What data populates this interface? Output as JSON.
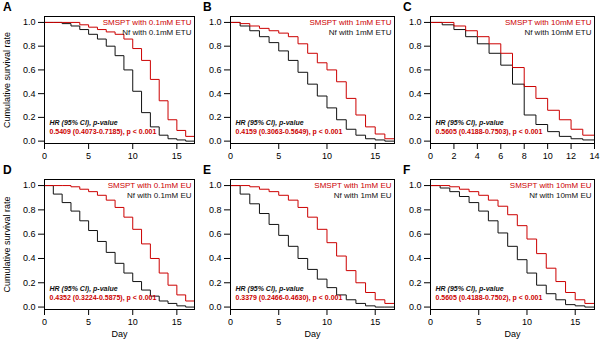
{
  "chart_data": [
    {
      "type": "line",
      "line_style": "step",
      "title": "A",
      "legend": "upper right",
      "grid": false,
      "ylabel": "Cumulative survival rate",
      "x": [
        0,
        1,
        2,
        3,
        4,
        5,
        6,
        7,
        8,
        9,
        10,
        11,
        12,
        13,
        14,
        15,
        16,
        17
      ],
      "series": [
        {
          "name": "Nf with 0.1mM ETU",
          "color": "#111111",
          "values": [
            1.0,
            1.0,
            0.99,
            0.97,
            0.94,
            0.9,
            0.86,
            0.8,
            0.72,
            0.6,
            0.42,
            0.24,
            0.12,
            0.05,
            0.02,
            0.01,
            0.0,
            0.0
          ]
        },
        {
          "name": "SMSPT with 0.1mM ETU",
          "color": "#CC0000",
          "values": [
            1.0,
            1.0,
            1.0,
            1.0,
            0.98,
            0.96,
            0.94,
            0.92,
            0.9,
            0.86,
            0.78,
            0.68,
            0.52,
            0.34,
            0.18,
            0.09,
            0.04,
            0.02
          ]
        }
      ],
      "annotations": [
        {
          "text": "HR (95% CI), p-value",
          "color": "#111111"
        },
        {
          "text": "0.5409 (0.4073-0.7185), p < 0.001",
          "color": "#CC0000"
        }
      ],
      "xlim": [
        0,
        17
      ],
      "xticks": [
        0,
        5,
        10,
        15
      ],
      "ylim": [
        -0.02,
        1.05
      ],
      "yticks": [
        {
          "value": 0.0,
          "label": "0.0"
        },
        {
          "value": 0.2,
          "label": "0.2"
        },
        {
          "value": 0.4,
          "label": "0.4"
        },
        {
          "value": 0.6,
          "label": "0.6"
        },
        {
          "value": 0.8,
          "label": "0.8"
        },
        {
          "value": 1.0,
          "label": "1.0"
        }
      ]
    },
    {
      "type": "line",
      "line_style": "step",
      "title": "B",
      "legend": "upper right",
      "grid": false,
      "x": [
        0,
        1,
        2,
        3,
        4,
        5,
        6,
        7,
        8,
        9,
        10,
        11,
        12,
        13,
        14,
        15,
        16,
        17
      ],
      "series": [
        {
          "name": "Nf with 1mM ETU",
          "color": "#111111",
          "values": [
            1.0,
            0.97,
            0.93,
            0.88,
            0.83,
            0.76,
            0.68,
            0.58,
            0.48,
            0.38,
            0.28,
            0.18,
            0.1,
            0.05,
            0.02,
            0.01,
            0.0,
            0.0
          ]
        },
        {
          "name": "SMSPT with 1mM ETU",
          "color": "#CC0000",
          "values": [
            1.0,
            0.99,
            0.97,
            0.95,
            0.93,
            0.91,
            0.88,
            0.82,
            0.74,
            0.66,
            0.6,
            0.5,
            0.36,
            0.22,
            0.12,
            0.06,
            0.02,
            0.0
          ]
        }
      ],
      "annotations": [
        {
          "text": "HR (95% CI), p-value",
          "color": "#111111"
        },
        {
          "text": "0.4159 (0.3063-0.5649), p < 0.001",
          "color": "#CC0000"
        }
      ],
      "xlim": [
        0,
        17
      ],
      "xticks": [
        0,
        5,
        10,
        15
      ],
      "ylim": [
        -0.02,
        1.05
      ],
      "yticks": [
        {
          "value": 0.0,
          "label": "0.0"
        },
        {
          "value": 0.2,
          "label": "0.2"
        },
        {
          "value": 0.4,
          "label": "0.4"
        },
        {
          "value": 0.6,
          "label": "0.6"
        },
        {
          "value": 0.8,
          "label": "0.8"
        },
        {
          "value": 1.0,
          "label": "1.0"
        }
      ]
    },
    {
      "type": "line",
      "line_style": "step",
      "title": "C",
      "legend": "upper right",
      "grid": false,
      "x": [
        0,
        1,
        2,
        3,
        4,
        5,
        6,
        7,
        8,
        9,
        10,
        11,
        12,
        13,
        14
      ],
      "series": [
        {
          "name": "Nf with 10mM ETU",
          "color": "#111111",
          "values": [
            1.0,
            0.98,
            0.94,
            0.88,
            0.82,
            0.74,
            0.64,
            0.48,
            0.22,
            0.14,
            0.08,
            0.04,
            0.02,
            0.01,
            0.0
          ]
        },
        {
          "name": "SMSPT with 10mM ETU",
          "color": "#CC0000",
          "values": [
            1.0,
            1.0,
            0.97,
            0.93,
            0.88,
            0.82,
            0.74,
            0.62,
            0.46,
            0.36,
            0.26,
            0.18,
            0.1,
            0.05,
            0.02
          ]
        }
      ],
      "annotations": [
        {
          "text": "HR (95% CI), p-value",
          "color": "#111111"
        },
        {
          "text": "0.5605 (0.4188-0.7503), p < 0.001",
          "color": "#CC0000"
        }
      ],
      "xlim": [
        0,
        14
      ],
      "xticks": [
        0,
        2,
        4,
        6,
        8,
        10,
        12,
        14
      ],
      "ylim": [
        -0.02,
        1.05
      ],
      "yticks": [
        {
          "value": 0.0,
          "label": "0.0"
        },
        {
          "value": 0.2,
          "label": "0.2"
        },
        {
          "value": 0.4,
          "label": "0.4"
        },
        {
          "value": 0.6,
          "label": "0.6"
        },
        {
          "value": 0.8,
          "label": "0.8"
        },
        {
          "value": 1.0,
          "label": "1.0"
        }
      ]
    },
    {
      "type": "line",
      "line_style": "step",
      "title": "D",
      "legend": "upper right",
      "grid": false,
      "ylabel": "Cumulative survival rate",
      "xlabel": "Day",
      "x": [
        0,
        1,
        2,
        3,
        4,
        5,
        6,
        7,
        8,
        9,
        10,
        11,
        12,
        13,
        14,
        15,
        16,
        17
      ],
      "series": [
        {
          "name": "Nf with 0.1mM EU",
          "color": "#111111",
          "values": [
            1.0,
            0.93,
            0.86,
            0.79,
            0.71,
            0.63,
            0.54,
            0.45,
            0.36,
            0.28,
            0.21,
            0.14,
            0.09,
            0.05,
            0.03,
            0.01,
            0.0,
            0.0
          ]
        },
        {
          "name": "SMSPT with 0.1mM EU",
          "color": "#CC0000",
          "values": [
            1.0,
            1.0,
            1.0,
            0.99,
            0.97,
            0.95,
            0.92,
            0.88,
            0.82,
            0.74,
            0.64,
            0.52,
            0.4,
            0.28,
            0.18,
            0.1,
            0.05,
            0.02
          ]
        }
      ],
      "annotations": [
        {
          "text": "HR (95% CI), p-value",
          "color": "#111111"
        },
        {
          "text": "0.4352 (0.3224-0.5875), p < 0.001",
          "color": "#CC0000"
        }
      ],
      "xlim": [
        0,
        17
      ],
      "xticks": [
        0,
        5,
        10,
        15
      ],
      "ylim": [
        -0.02,
        1.05
      ],
      "yticks": [
        {
          "value": 0.0,
          "label": "0.0"
        },
        {
          "value": 0.2,
          "label": "0.2"
        },
        {
          "value": 0.4,
          "label": "0.4"
        },
        {
          "value": 0.6,
          "label": "0.6"
        },
        {
          "value": 0.8,
          "label": "0.8"
        },
        {
          "value": 1.0,
          "label": "1.0"
        }
      ]
    },
    {
      "type": "line",
      "line_style": "step",
      "title": "E",
      "legend": "upper right",
      "grid": false,
      "xlabel": "Day",
      "x": [
        0,
        1,
        2,
        3,
        4,
        5,
        6,
        7,
        8,
        9,
        10,
        11,
        12,
        13,
        14,
        15,
        16,
        17
      ],
      "series": [
        {
          "name": "Nf with 1mM EU",
          "color": "#111111",
          "values": [
            1.0,
            0.93,
            0.85,
            0.77,
            0.68,
            0.59,
            0.5,
            0.4,
            0.31,
            0.23,
            0.16,
            0.1,
            0.06,
            0.03,
            0.01,
            0.0,
            0.0,
            0.0
          ]
        },
        {
          "name": "SMSPT with 1mM EU",
          "color": "#CC0000",
          "values": [
            1.0,
            1.0,
            0.99,
            0.97,
            0.95,
            0.92,
            0.88,
            0.82,
            0.74,
            0.64,
            0.53,
            0.42,
            0.3,
            0.2,
            0.12,
            0.06,
            0.03,
            0.01
          ]
        }
      ],
      "annotations": [
        {
          "text": "HR (95% CI), p-value",
          "color": "#111111"
        },
        {
          "text": "0.3379 (0.2466-0.4630), p < 0.001",
          "color": "#CC0000"
        }
      ],
      "xlim": [
        0,
        17
      ],
      "xticks": [
        0,
        5,
        10,
        15
      ],
      "ylim": [
        -0.02,
        1.05
      ],
      "yticks": [
        {
          "value": 0.0,
          "label": "0.0"
        },
        {
          "value": 0.2,
          "label": "0.2"
        },
        {
          "value": 0.4,
          "label": "0.4"
        },
        {
          "value": 0.6,
          "label": "0.6"
        },
        {
          "value": 0.8,
          "label": "0.8"
        },
        {
          "value": 1.0,
          "label": "1.0"
        }
      ]
    },
    {
      "type": "line",
      "line_style": "step",
      "title": "F",
      "legend": "upper right",
      "grid": false,
      "xlabel": "Day",
      "x": [
        0,
        1,
        2,
        3,
        4,
        5,
        6,
        7,
        8,
        9,
        10,
        11,
        12,
        13,
        14,
        15,
        16,
        17
      ],
      "series": [
        {
          "name": "Nf with 10mM EU",
          "color": "#111111",
          "values": [
            1.0,
            0.98,
            0.95,
            0.91,
            0.86,
            0.79,
            0.71,
            0.61,
            0.5,
            0.39,
            0.28,
            0.18,
            0.11,
            0.06,
            0.02,
            0.01,
            0.0,
            0.0
          ]
        },
        {
          "name": "SMSPT with 10mM EU",
          "color": "#CC0000",
          "values": [
            1.0,
            1.0,
            0.99,
            0.97,
            0.95,
            0.92,
            0.88,
            0.83,
            0.76,
            0.67,
            0.56,
            0.44,
            0.32,
            0.21,
            0.12,
            0.06,
            0.03,
            0.01
          ]
        }
      ],
      "annotations": [
        {
          "text": "HR (95% CI), p-value",
          "color": "#111111"
        },
        {
          "text": "0.5605 (0.4188-0.7502), p < 0.001",
          "color": "#CC0000"
        }
      ],
      "xlim": [
        0,
        17
      ],
      "xticks": [
        0,
        5,
        10,
        15
      ],
      "ylim": [
        -0.02,
        1.05
      ],
      "yticks": [
        {
          "value": 0.0,
          "label": "0.0"
        },
        {
          "value": 0.2,
          "label": "0.2"
        },
        {
          "value": 0.4,
          "label": "0.4"
        },
        {
          "value": 0.6,
          "label": "0.6"
        },
        {
          "value": 0.8,
          "label": "0.8"
        },
        {
          "value": 1.0,
          "label": "1.0"
        }
      ]
    }
  ]
}
